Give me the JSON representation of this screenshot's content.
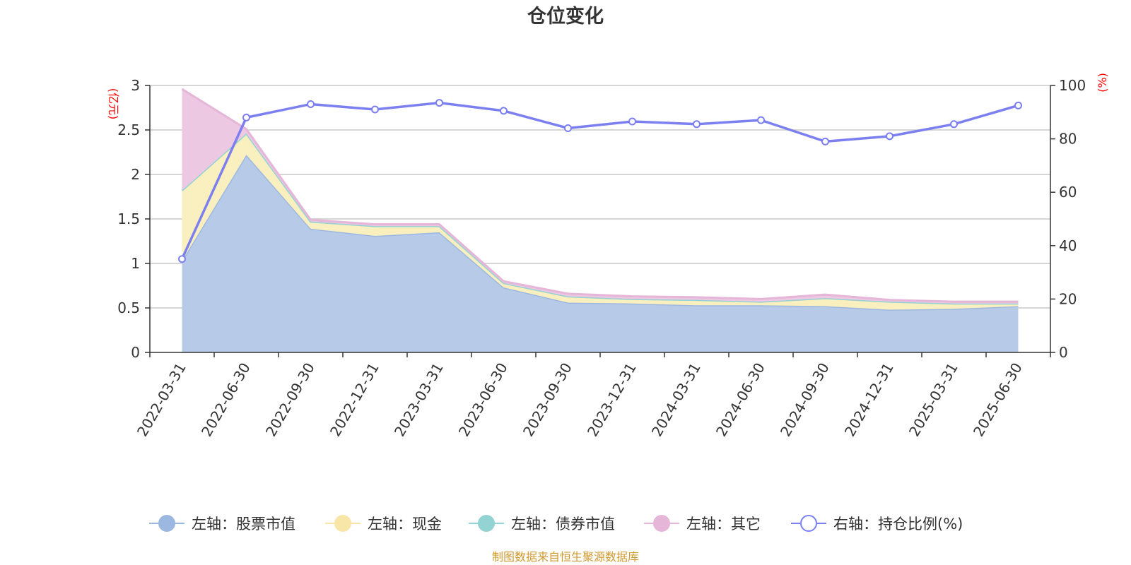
{
  "chart_data": {
    "type": "area",
    "title": "仓位变化",
    "y_left_unit": "(亿元)",
    "y_right_unit": "(%)",
    "y_left_ticks": [
      "0",
      "0.5",
      "1",
      "1.5",
      "2",
      "2.5",
      "3"
    ],
    "y_right_ticks": [
      "0",
      "20",
      "40",
      "60",
      "80",
      "100"
    ],
    "ylim_left": [
      0,
      3
    ],
    "ylim_right": [
      0,
      100
    ],
    "x": [
      "2022-03-31",
      "2022-06-30",
      "2022-09-30",
      "2022-12-31",
      "2023-03-31",
      "2023-06-30",
      "2023-09-30",
      "2023-12-31",
      "2024-03-31",
      "2024-06-30",
      "2024-09-30",
      "2024-12-31",
      "2025-03-31",
      "2025-06-30"
    ],
    "stacked_series": [
      {
        "name": "左轴：股票市值",
        "color": "#9db8e0",
        "fill": "#b7cbe9",
        "values": [
          1.03,
          2.22,
          1.39,
          1.31,
          1.35,
          0.73,
          0.56,
          0.55,
          0.53,
          0.53,
          0.52,
          0.48,
          0.49,
          0.52
        ]
      },
      {
        "name": "左轴：现金",
        "color": "#f8e6a8",
        "fill": "#faefbf",
        "values": [
          0.79,
          0.24,
          0.08,
          0.11,
          0.07,
          0.05,
          0.07,
          0.05,
          0.06,
          0.04,
          0.09,
          0.09,
          0.06,
          0.03
        ]
      },
      {
        "name": "左轴：债券市值",
        "color": "#93d3d3",
        "fill": "#a8dcdc",
        "values": [
          0,
          0,
          0,
          0,
          0,
          0,
          0,
          0,
          0,
          0,
          0,
          0,
          0,
          0
        ]
      },
      {
        "name": "左轴：其它",
        "color": "#e6b6d8",
        "fill": "#ecc8e3",
        "values": [
          1.14,
          0.05,
          0.02,
          0.02,
          0.02,
          0.02,
          0.03,
          0.03,
          0.03,
          0.03,
          0.04,
          0.02,
          0.02,
          0.02
        ]
      }
    ],
    "line_series": {
      "name": "右轴：持仓比例(%)",
      "color": "#7b7ff0",
      "values": [
        35,
        88,
        93,
        91,
        93.5,
        90.5,
        84,
        86.5,
        85.5,
        87,
        79,
        81,
        85.5,
        92.5
      ]
    },
    "grid": true,
    "legend": "bottom"
  },
  "source_text": "制图数据来自恒生聚源数据库"
}
